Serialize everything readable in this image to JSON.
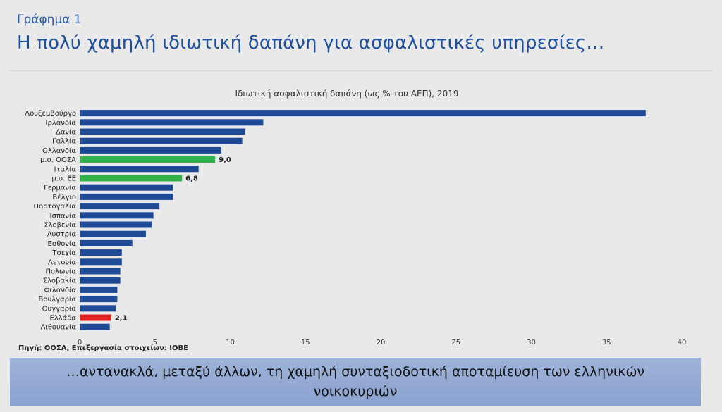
{
  "header": {
    "figure_label": "Γράφημα 1",
    "headline": "Η πολύ χαμηλή ιδιωτική δαπάνη για ασφαλιστικές υπηρεσίες…"
  },
  "source": "Πηγή: ΟΟΣΑ, Επεξεργασία στοιχείων: ΙΟΒΕ",
  "banner": "…αντανακλά, μεταξύ άλλων, τη χαμηλή συνταξιοδοτική αποταμίευση των ελληνικών νοικοκυριών",
  "colors": {
    "default_bar": "#1f4b96",
    "oecd_eu_bar": "#2db34a",
    "greece_bar": "#e02222"
  },
  "chart_data": {
    "type": "bar",
    "orientation": "horizontal",
    "title": "Ιδιωτική ασφαλιστική δαπάνη (ως % του ΑΕΠ), 2019",
    "xlim": [
      0,
      40
    ],
    "xticks": [
      0,
      5,
      10,
      15,
      20,
      25,
      30,
      35,
      40
    ],
    "grid": false,
    "categories": [
      "Λουξεμβούργο",
      "Ιρλανδία",
      "Δανία",
      "Γαλλία",
      "Ολλανδία",
      "μ.ο. ΟΟΣΑ",
      "Ιταλία",
      "μ.ο. ΕΕ",
      "Γερμανία",
      "Βέλγιο",
      "Πορτογαλία",
      "Ισπανία",
      "Σλοβενία",
      "Αυστρία",
      "Εσθονία",
      "Τσεχία",
      "Λετονία",
      "Πολωνία",
      "Σλοβακία",
      "Φιλανδία",
      "Βουλγαρία",
      "Ουγγαρία",
      "Ελλάδα",
      "Λιθουανία"
    ],
    "values": [
      37.6,
      12.2,
      11.0,
      10.8,
      9.4,
      9.0,
      7.9,
      6.8,
      6.2,
      6.2,
      5.3,
      4.9,
      4.8,
      4.4,
      3.5,
      2.8,
      2.8,
      2.7,
      2.7,
      2.5,
      2.5,
      2.4,
      2.1,
      2.0
    ],
    "highlight": {
      "μ.ο. ΟΟΣΑ": "oecd_eu_bar",
      "μ.ο. ΕΕ": "oecd_eu_bar",
      "Ελλάδα": "greece_bar"
    },
    "data_labels": {
      "μ.ο. ΟΟΣΑ": "9,0",
      "μ.ο. ΕΕ": "6,8",
      "Ελλάδα": "2,1"
    }
  }
}
